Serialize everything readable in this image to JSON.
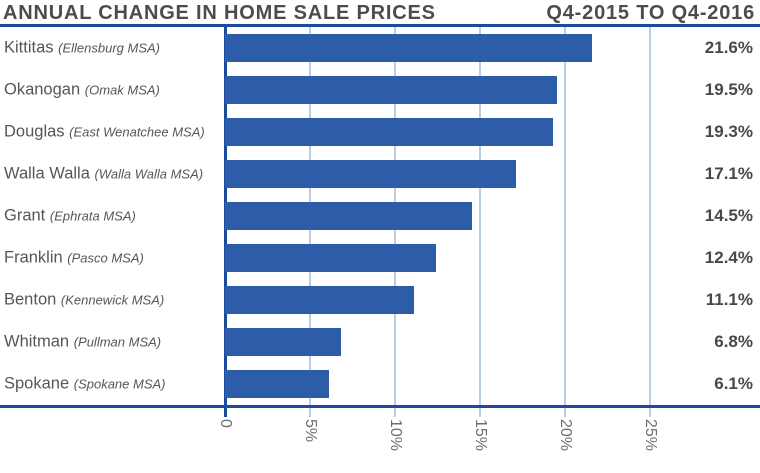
{
  "header": {
    "title_left": "ANNUAL CHANGE IN HOME SALE PRICES",
    "title_right": "Q4-2015 TO Q4-2016"
  },
  "colors": {
    "bar": "#2d5ca8",
    "rule": "#1c4b9c",
    "gridline": "#b9cce8",
    "title_text": "#4c4c4c",
    "label_text": "#565656",
    "value_text": "#484848",
    "tick_text": "#6e6e6e"
  },
  "chart_data": {
    "type": "bar",
    "orientation": "horizontal",
    "title": "ANNUAL CHANGE IN HOME SALE PRICES",
    "subtitle": "Q4-2015 TO Q4-2016",
    "categories": [
      "Kittitas",
      "Okanogan",
      "Douglas",
      "Walla Walla",
      "Grant",
      "Franklin",
      "Benton",
      "Whitman",
      "Spokane"
    ],
    "category_sublabels": [
      "(Ellensburg MSA)",
      "(Omak MSA)",
      "(East Wenatchee MSA)",
      "(Walla Walla MSA)",
      "(Ephrata MSA)",
      "(Pasco MSA)",
      "(Kennewick MSA)",
      "(Pullman MSA)",
      "(Spokane MSA)"
    ],
    "values": [
      21.6,
      19.5,
      19.3,
      17.1,
      14.5,
      12.4,
      11.1,
      6.8,
      6.1
    ],
    "value_labels": [
      "21.6%",
      "19.5%",
      "19.3%",
      "17.1%",
      "14.5%",
      "12.4%",
      "11.1%",
      "6.8%",
      "6.1%"
    ],
    "xlim": [
      0,
      25
    ],
    "x_ticks": [
      0,
      5,
      10,
      15,
      20,
      25
    ],
    "x_tick_labels": [
      "0",
      "5%",
      "10%",
      "15%",
      "20%",
      "25%"
    ],
    "grid": true,
    "legend": "none"
  }
}
